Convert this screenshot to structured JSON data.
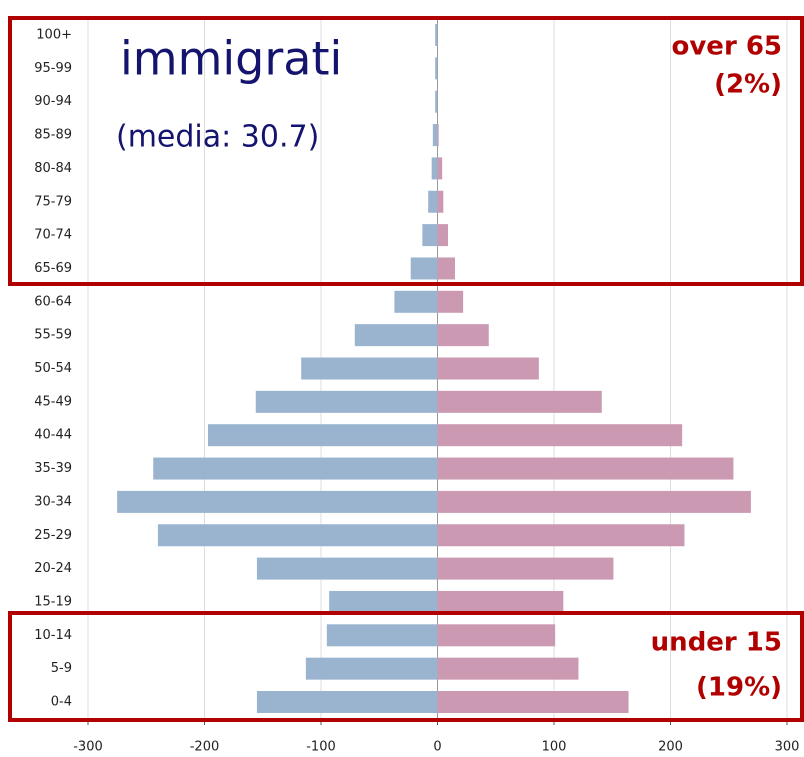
{
  "chart_data": {
    "type": "pyramid",
    "categories": [
      "0-4",
      "5-9",
      "10-14",
      "15-19",
      "20-24",
      "25-29",
      "30-34",
      "35-39",
      "40-44",
      "45-49",
      "50-54",
      "55-59",
      "60-64",
      "65-69",
      "70-74",
      "75-79",
      "80-84",
      "85-89",
      "90-94",
      "95-99",
      "100+"
    ],
    "series": [
      {
        "color": "#9ab4cf",
        "values": [
          -155,
          -113,
          -95,
          -93,
          -155,
          -240,
          -275,
          -244,
          -197,
          -156,
          -117,
          -71,
          -37,
          -23,
          -13,
          -8,
          -5,
          -4,
          -2,
          -2,
          -2
        ]
      },
      {
        "color": "#cc99b2",
        "values": [
          164,
          121,
          101,
          108,
          151,
          212,
          269,
          254,
          210,
          141,
          87,
          44,
          22,
          15,
          9,
          5,
          4,
          1,
          0,
          0,
          0
        ]
      }
    ],
    "xlim": [
      -300,
      300
    ],
    "xticks": [
      -300,
      -200,
      -100,
      0,
      100,
      200,
      300
    ],
    "grid": true,
    "annotations": [
      "immigrati",
      "(media: 30.7)",
      "over 65",
      "(2%)",
      "under 15",
      "(19%)"
    ]
  }
}
